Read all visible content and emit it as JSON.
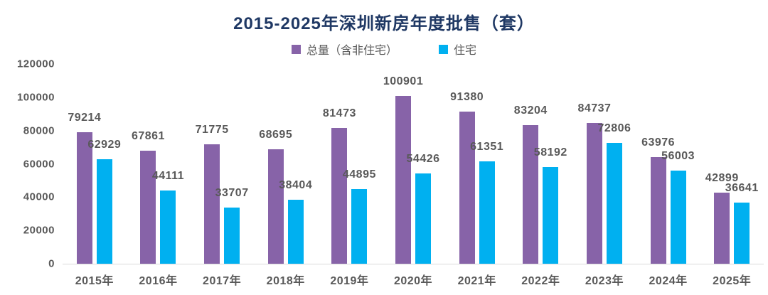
{
  "title": "2015-2025年深圳新房年度批售（套）",
  "colors": {
    "title_text": "#1F3864",
    "label_text": "#595959",
    "axis_line": "#D9D9D9",
    "total_series": "#8763A8",
    "residential_series": "#00B0F0",
    "background": "#FFFFFF"
  },
  "chart_data": {
    "type": "bar",
    "title": "2015-2025年深圳新房年度批售（套）",
    "categories": [
      "2015年",
      "2016年",
      "2017年",
      "2018年",
      "2019年",
      "2020年",
      "2021年",
      "2022年",
      "2023年",
      "2024年",
      "2025年"
    ],
    "series": [
      {
        "name": "总量（含非住宅）",
        "key": "total",
        "color": "#8763A8",
        "values": [
          79214,
          67861,
          71775,
          68695,
          81473,
          100901,
          91380,
          83204,
          84737,
          63976,
          42899
        ]
      },
      {
        "name": "住宅",
        "key": "residential",
        "color": "#00B0F0",
        "values": [
          62929,
          44111,
          33707,
          38404,
          44895,
          54426,
          61351,
          58192,
          72806,
          56003,
          36641
        ]
      }
    ],
    "y_ticks": [
      0,
      20000,
      40000,
      60000,
      80000,
      100000,
      120000
    ],
    "ylim": [
      0,
      120000
    ],
    "xlabel": "",
    "ylabel": "",
    "grid": false,
    "legend_position": "top",
    "data_labels": true
  }
}
